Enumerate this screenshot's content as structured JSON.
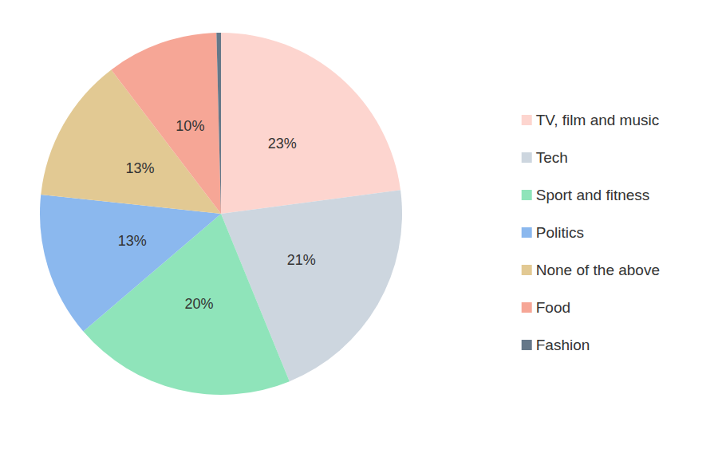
{
  "chart_data": {
    "type": "pie",
    "categories": [
      "TV, film and music",
      "Tech",
      "Sport and fitness",
      "Politics",
      "None of the above",
      "Food",
      "Fashion"
    ],
    "values": [
      23,
      21,
      20,
      13,
      13,
      10,
      0.4
    ],
    "value_labels": [
      "23%",
      "21%",
      "20%",
      "13%",
      "13%",
      "10%",
      null
    ],
    "colors": [
      "#fdd5cf",
      "#cdd6df",
      "#8fe4ba",
      "#8bb8ee",
      "#e2c993",
      "#f6a696",
      "#657889"
    ],
    "data_labels": true,
    "legend": "right"
  }
}
